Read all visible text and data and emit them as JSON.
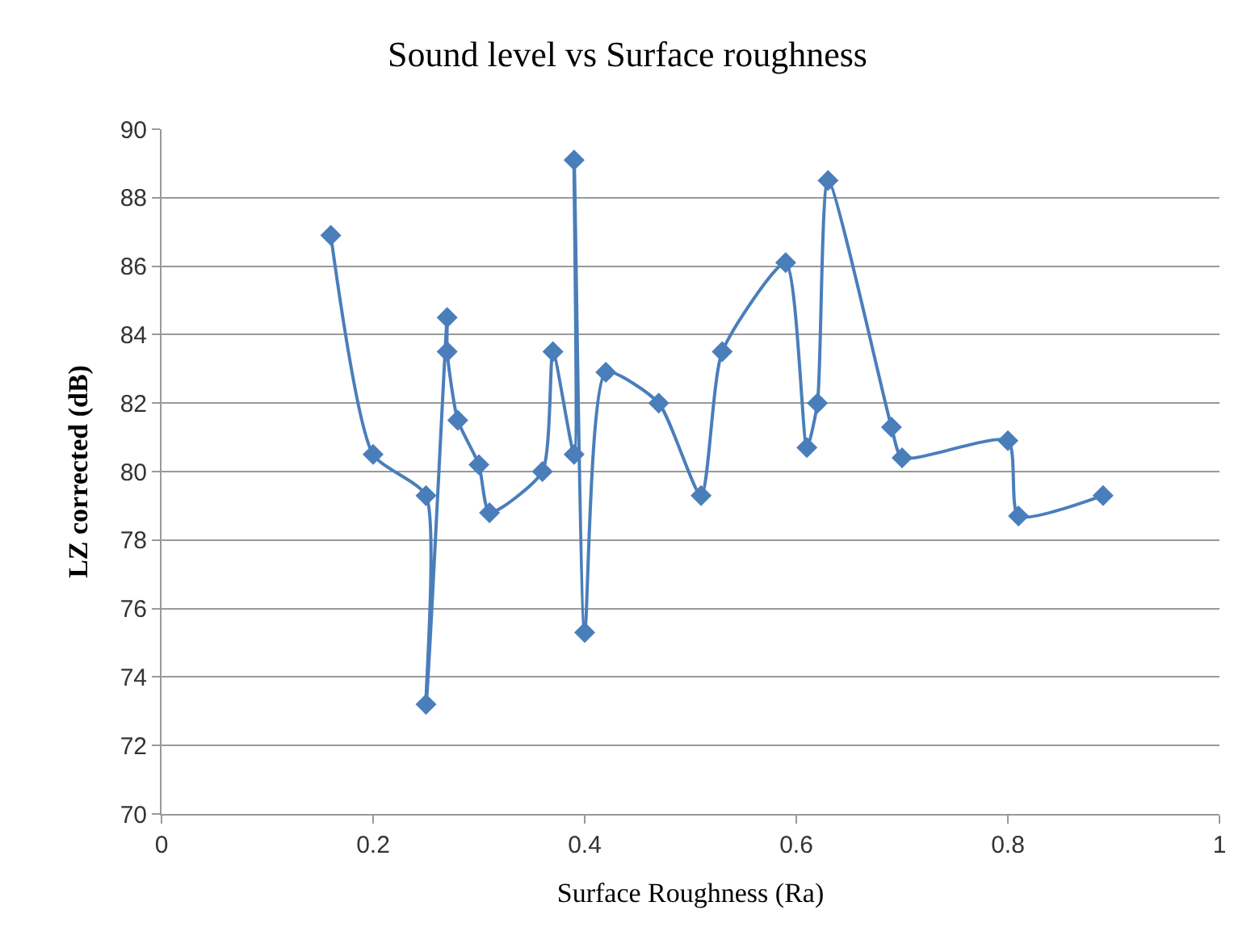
{
  "chart_data": {
    "type": "line",
    "title": "Sound level vs Surface roughness",
    "xlabel": "Surface Roughness (Ra)",
    "ylabel": "LZ corrected (dB)",
    "x": [
      0.16,
      0.2,
      0.25,
      0.25,
      0.27,
      0.27,
      0.28,
      0.3,
      0.31,
      0.36,
      0.37,
      0.39,
      0.39,
      0.4,
      0.42,
      0.47,
      0.51,
      0.53,
      0.59,
      0.61,
      0.62,
      0.63,
      0.69,
      0.7,
      0.8,
      0.81,
      0.89
    ],
    "series": [
      {
        "color": "#4a7ebb",
        "values": [
          86.9,
          80.5,
          79.3,
          73.2,
          84.5,
          83.5,
          81.5,
          80.2,
          78.8,
          80.0,
          83.5,
          80.5,
          89.1,
          75.3,
          82.9,
          82.0,
          79.3,
          83.5,
          86.1,
          80.7,
          82.0,
          88.5,
          81.3,
          80.4,
          80.9,
          78.7,
          79.3
        ]
      }
    ],
    "xlim": [
      0,
      1
    ],
    "xticks": [
      0,
      0.2,
      0.4,
      0.6,
      0.8,
      1
    ],
    "ylim": [
      70,
      90
    ],
    "yticks": [
      70,
      72,
      74,
      76,
      78,
      80,
      82,
      84,
      86,
      88,
      90
    ],
    "grid": "y",
    "marker": "diamond",
    "line_style": "solid"
  }
}
